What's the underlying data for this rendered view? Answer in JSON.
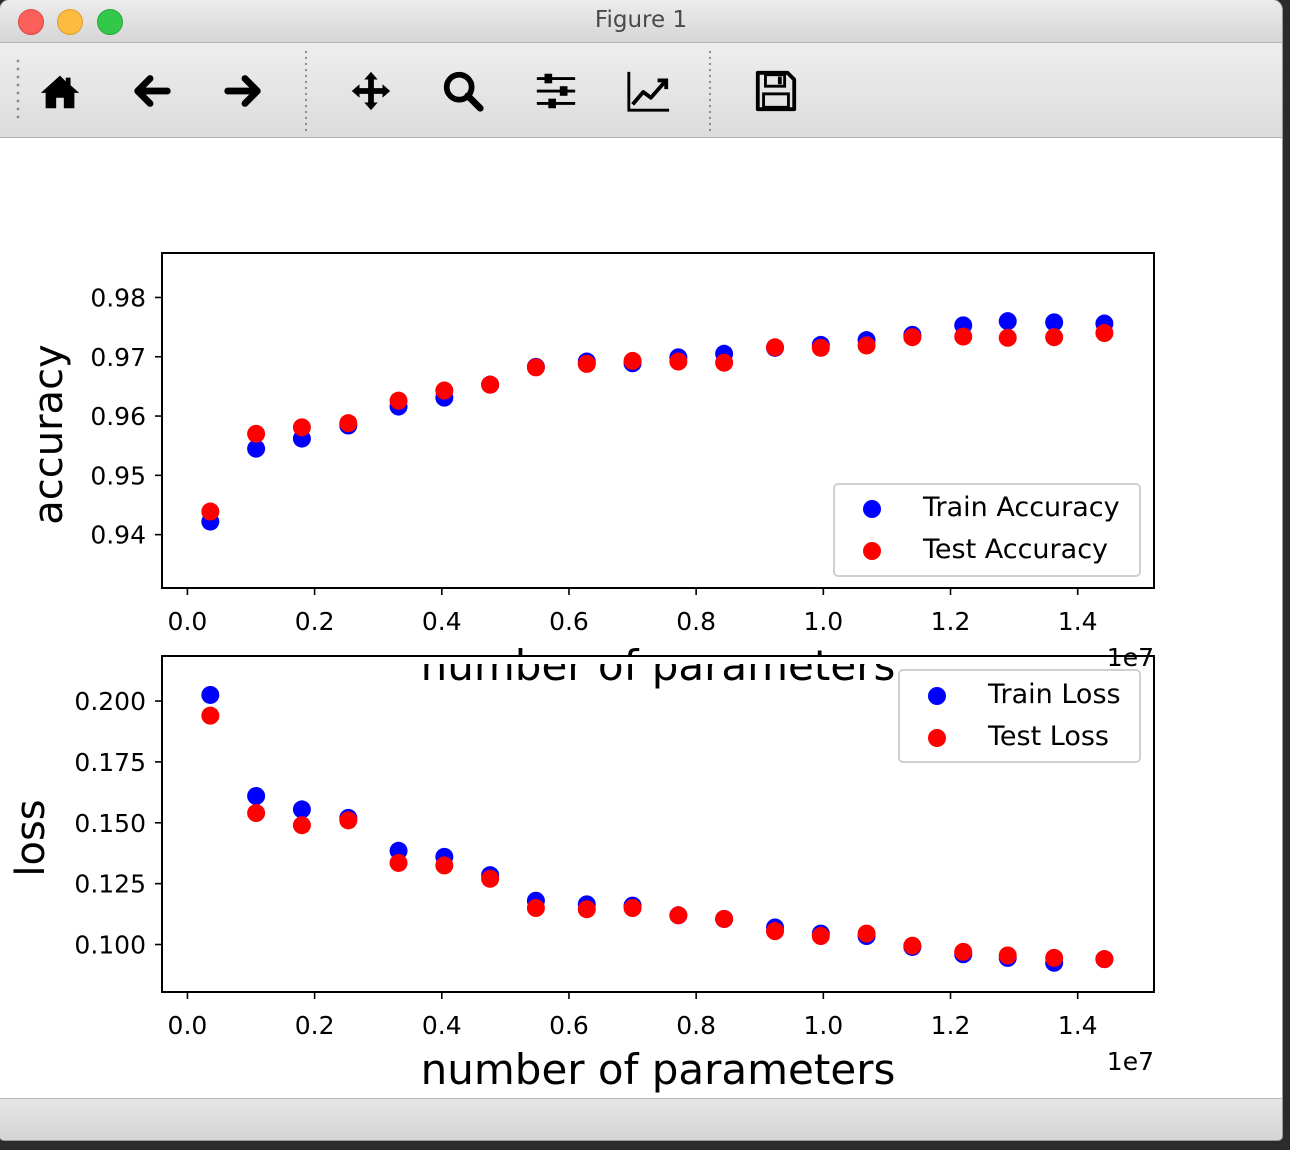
{
  "window": {
    "title": "Figure 1"
  },
  "toolbar": {
    "buttons": [
      {
        "name": "home-button",
        "icon": "home-icon"
      },
      {
        "name": "back-button",
        "icon": "arrow-left-icon"
      },
      {
        "name": "forward-button",
        "icon": "arrow-right-icon"
      },
      {
        "name": "pan-button",
        "icon": "move-icon"
      },
      {
        "name": "zoom-button",
        "icon": "magnifier-icon"
      },
      {
        "name": "subplots-button",
        "icon": "sliders-icon"
      },
      {
        "name": "axes-edit-button",
        "icon": "line-chart-icon"
      },
      {
        "name": "save-button",
        "icon": "floppy-disk-icon"
      }
    ]
  },
  "chart_data": [
    {
      "type": "scatter",
      "title": "",
      "xlabel": "number of parameters",
      "ylabel": "accuracy",
      "x_offset_text": "1e7",
      "xlim": [
        -0.04,
        1.52
      ],
      "ylim": [
        0.931,
        0.9875
      ],
      "xticks": [
        "0.0",
        "0.2",
        "0.4",
        "0.6",
        "0.8",
        "1.0",
        "1.2",
        "1.4"
      ],
      "yticks": [
        "0.94",
        "0.95",
        "0.96",
        "0.97",
        "0.98"
      ],
      "legend": "lower-right",
      "x": [
        0.036,
        0.108,
        0.18,
        0.253,
        0.332,
        0.404,
        0.476,
        0.548,
        0.628,
        0.7,
        0.772,
        0.844,
        0.924,
        0.996,
        1.068,
        1.14,
        1.22,
        1.29,
        1.363,
        1.442
      ],
      "series": [
        {
          "name": "Train Accuracy",
          "color": "#0000ff",
          "values": [
            0.9422,
            0.9545,
            0.9562,
            0.9584,
            0.9616,
            0.9631,
            0.9653,
            0.9683,
            0.9692,
            0.9689,
            0.9699,
            0.9705,
            0.9715,
            0.972,
            0.9728,
            0.9737,
            0.9753,
            0.976,
            0.9758,
            0.9756
          ]
        },
        {
          "name": "Test Accuracy",
          "color": "#ff0000",
          "values": [
            0.9439,
            0.957,
            0.9581,
            0.9588,
            0.9626,
            0.9643,
            0.9653,
            0.9682,
            0.9688,
            0.9693,
            0.9692,
            0.969,
            0.9716,
            0.9715,
            0.9719,
            0.9733,
            0.9734,
            0.9732,
            0.9733,
            0.974
          ]
        }
      ]
    },
    {
      "type": "scatter",
      "title": "",
      "xlabel": "number of parameters",
      "ylabel": "loss",
      "x_offset_text": "1e7",
      "xlim": [
        -0.04,
        1.52
      ],
      "ylim": [
        0.0805,
        0.2185
      ],
      "xticks": [
        "0.0",
        "0.2",
        "0.4",
        "0.6",
        "0.8",
        "1.0",
        "1.2",
        "1.4"
      ],
      "yticks": [
        "0.100",
        "0.125",
        "0.150",
        "0.175",
        "0.200"
      ],
      "legend": "upper-right",
      "x": [
        0.036,
        0.108,
        0.18,
        0.253,
        0.332,
        0.404,
        0.476,
        0.548,
        0.628,
        0.7,
        0.772,
        0.844,
        0.924,
        0.996,
        1.068,
        1.14,
        1.22,
        1.29,
        1.363,
        1.442
      ],
      "series": [
        {
          "name": "Train Loss",
          "color": "#0000ff",
          "values": [
            0.2025,
            0.161,
            0.1555,
            0.152,
            0.1385,
            0.136,
            0.1285,
            0.118,
            0.1165,
            0.116,
            0.112,
            0.1105,
            0.107,
            0.1045,
            0.1035,
            0.099,
            0.096,
            0.0945,
            0.0925,
            0.094
          ]
        },
        {
          "name": "Test Loss",
          "color": "#ff0000",
          "values": [
            0.194,
            0.154,
            0.149,
            0.151,
            0.1335,
            0.1325,
            0.127,
            0.115,
            0.1145,
            0.115,
            0.112,
            0.1105,
            0.1055,
            0.1035,
            0.1045,
            0.0995,
            0.097,
            0.0955,
            0.0945,
            0.094
          ]
        }
      ]
    }
  ]
}
